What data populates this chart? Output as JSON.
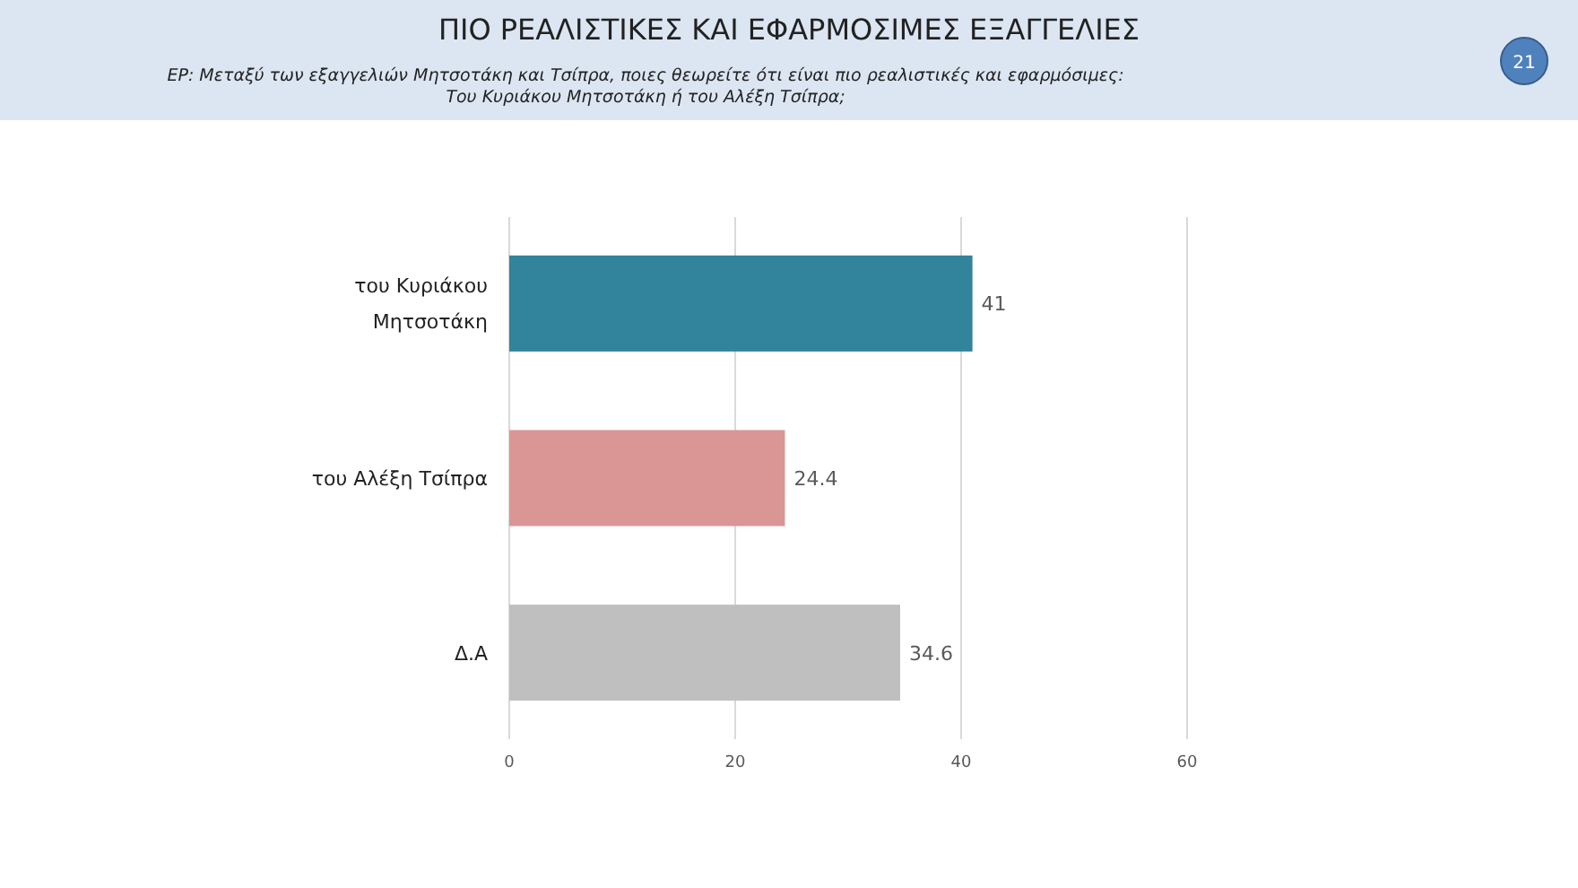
{
  "chart_data": {
    "type": "bar",
    "orientation": "horizontal",
    "title": "ΠΙΟ ΡΕΑΛΙΣΤΙΚΕΣ ΚΑΙ ΕΦΑΡΜΟΣΙΜΕΣ ΕΞΑΓΓΕΛΙΕΣ",
    "subtitle": "ΕΡ: Μεταξύ των εξαγγελιών Μητσοτάκη και Τσίπρα, ποιες θεωρείτε ότι είναι πιο ρεαλιστικές και εφαρμόσιμες:\nΤου Κυριάκου Μητσοτάκη ή του Αλέξη Τσίπρα;",
    "categories": [
      "του Κυριάκου Μητσοτάκη",
      "του Αλέξη Τσίπρα",
      "Δ.Α"
    ],
    "values": [
      41,
      24.4,
      34.6
    ],
    "colors": [
      "#31849b",
      "#d99694",
      "#bfbfbf"
    ],
    "xlim": [
      0,
      60
    ],
    "xticks": [
      0,
      20,
      40,
      60
    ],
    "grid": "x",
    "data_labels": true,
    "annotations": [
      "21"
    ]
  }
}
